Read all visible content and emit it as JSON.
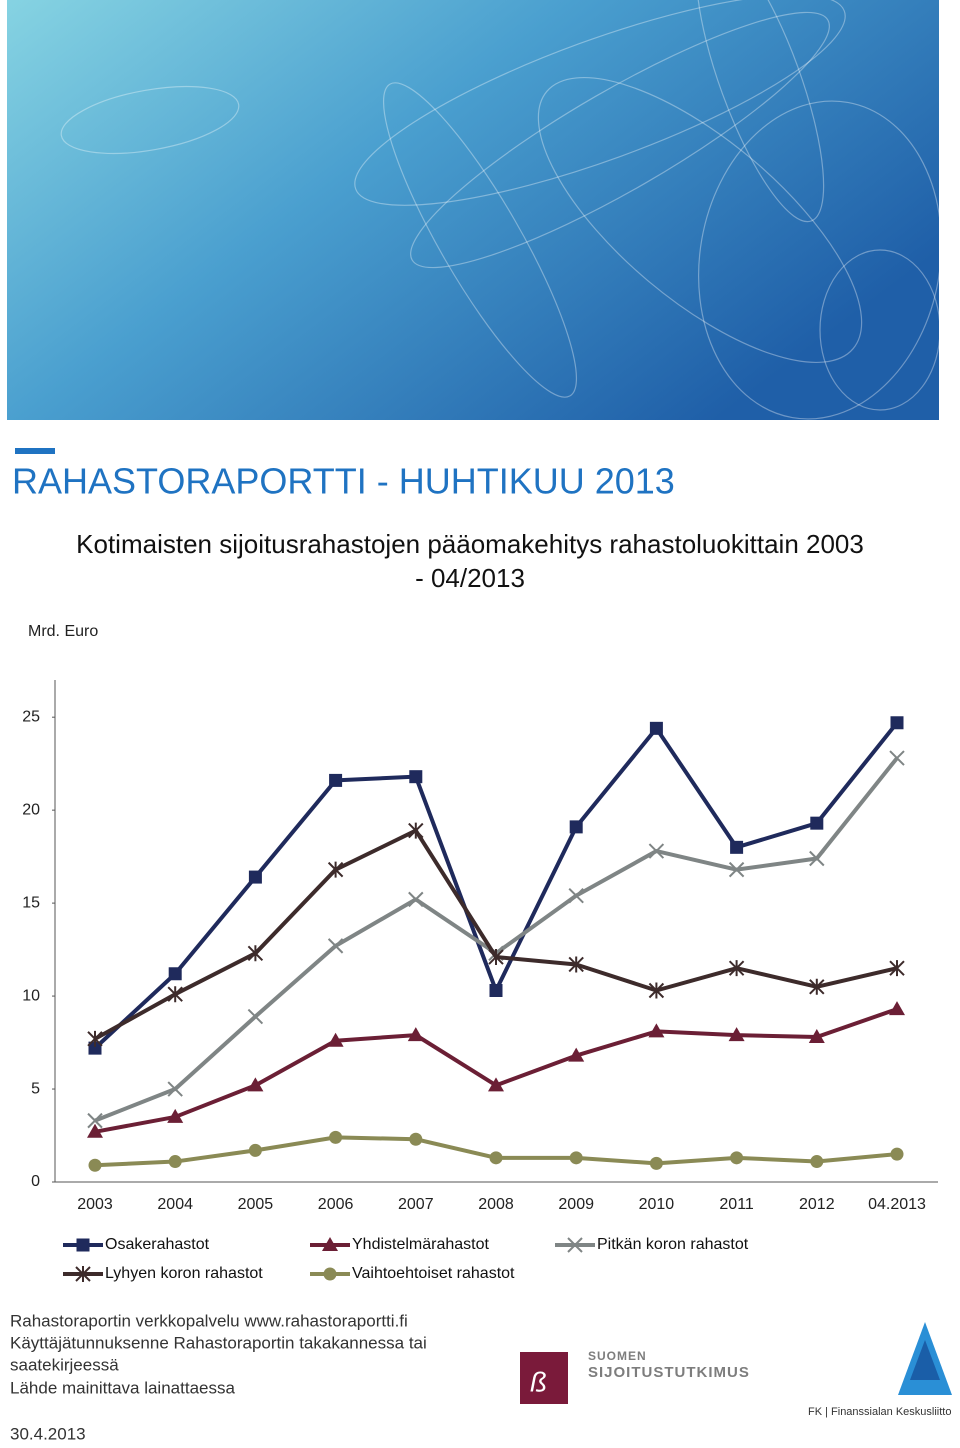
{
  "header": {
    "title": "RAHASTORAPORTTI - HUHTIKUU 2013",
    "subtitle": [
      "Kotimaisten sijoitusrahastojen pääomakehitys rahastoluokittain 2003",
      "- 04/2013"
    ]
  },
  "chart_data": {
    "type": "line",
    "y_label": "Mrd. Euro",
    "categories": [
      "2003",
      "2004",
      "2005",
      "2006",
      "2007",
      "2008",
      "2009",
      "2010",
      "2011",
      "2012",
      "04.2013"
    ],
    "series": [
      {
        "name": "Osakerahastot",
        "color": "#1f2a5c",
        "marker": "square",
        "values": [
          7.2,
          11.2,
          16.4,
          21.6,
          21.8,
          10.3,
          19.1,
          24.4,
          18.0,
          19.3,
          24.7
        ]
      },
      {
        "name": "Yhdistelmärahastot",
        "color": "#6b1f35",
        "marker": "triangle",
        "values": [
          2.7,
          3.5,
          5.2,
          7.6,
          7.9,
          5.2,
          6.8,
          8.1,
          7.9,
          7.8,
          9.3
        ]
      },
      {
        "name": "Pitkän koron rahastot",
        "color": "#7f8585",
        "marker": "x",
        "values": [
          3.3,
          5.0,
          8.9,
          12.7,
          15.2,
          12.3,
          15.4,
          17.8,
          16.8,
          17.4,
          22.8
        ]
      },
      {
        "name": "Lyhyen koron rahastot",
        "color": "#3d2b2b",
        "marker": "star",
        "values": [
          7.7,
          10.1,
          12.3,
          16.8,
          18.9,
          12.1,
          11.7,
          10.3,
          11.5,
          10.5,
          11.5
        ]
      },
      {
        "name": "Vaihtoehtoiset rahastot",
        "color": "#8a8a55",
        "marker": "circle",
        "values": [
          0.9,
          1.1,
          1.7,
          2.4,
          2.3,
          1.3,
          1.3,
          1.0,
          1.3,
          1.1,
          1.5
        ]
      }
    ],
    "ylim": [
      0,
      27
    ],
    "yticks": [
      0,
      5,
      10,
      15,
      20,
      25
    ],
    "grid": false,
    "legend": "bottom"
  },
  "footer": {
    "lines": [
      "Rahastoraportin verkkopalvelu www.rahastoraportti.fi",
      "Käyttäjätunnuksenne Rahastoraportin takakannessa tai",
      "saatekirjeessä",
      "Lähde mainittava lainattaessa"
    ],
    "date": "30.4.2013"
  },
  "logos": {
    "sst": [
      "SUOMEN",
      "SIJOITUSTUTKIMUS"
    ],
    "fk": "FK | Finanssialan Keskusliitto"
  }
}
